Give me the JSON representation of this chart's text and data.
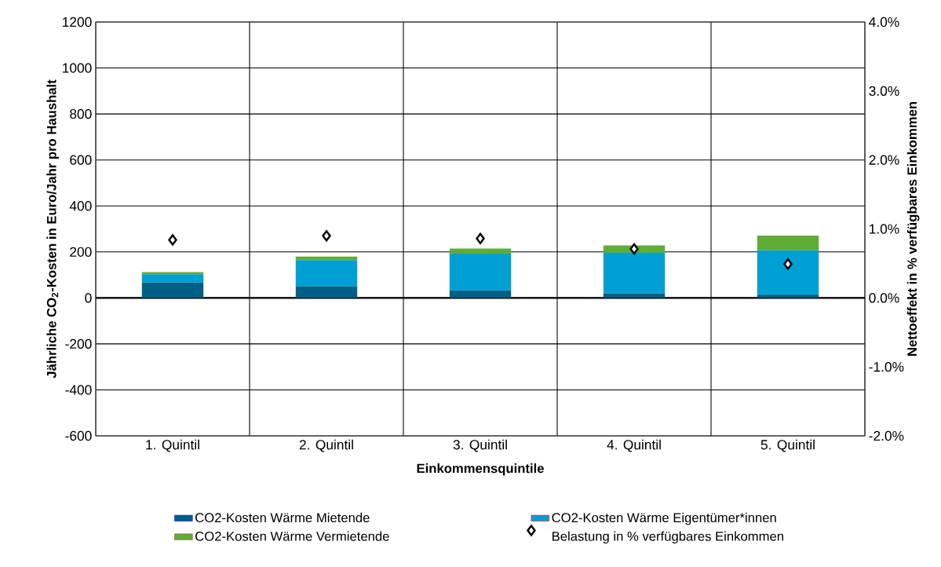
{
  "chart_data": {
    "type": "bar",
    "stacked": true,
    "xlabel": "Einkommensquintile",
    "ylabel": "Jährliche CO$_{2}$-Kosten in Euro/Jahr pro Haushalt",
    "y2label": "Nettoeffekt in % verfügbares Einkommen",
    "categories": [
      "1. Quintil",
      "2. Quintil",
      "3. Quintil",
      "4. Quintil",
      "5. Quintil"
    ],
    "series": [
      {
        "name": "CO2-Kosten Wärme Mietende",
        "color": "#005f86",
        "values": [
          67,
          51,
          33,
          20,
          14
        ]
      },
      {
        "name": "CO2-Kosten Wärme Eigentümer*innen",
        "color": "#009fd4",
        "values": [
          36,
          113,
          159,
          176,
          193
        ]
      },
      {
        "name": "CO2-Kosten Wärme Vermietende",
        "color": "#5fad36",
        "values": [
          9,
          16,
          23,
          32,
          64
        ]
      },
      {
        "name": "Belastung in % verfügbares Einkommen",
        "type": "scatter",
        "axis": "y2",
        "marker": "diamond",
        "color": "#000000",
        "values": [
          0.84,
          0.9,
          0.86,
          0.71,
          0.49
        ]
      }
    ],
    "ylim": [
      -600,
      1200
    ],
    "yticks": [
      -600,
      -400,
      -200,
      0,
      200,
      400,
      600,
      800,
      1000,
      1200
    ],
    "y2lim": [
      -2,
      4
    ],
    "y2ticks": [
      {
        "value": -2,
        "label": "-2.0%"
      },
      {
        "value": -1,
        "label": "-1.0%"
      },
      {
        "value": 0,
        "label": "0.0%"
      },
      {
        "value": 1,
        "label": "1.0%"
      },
      {
        "value": 2,
        "label": "2.0%"
      },
      {
        "value": 3,
        "label": "3.0%"
      },
      {
        "value": 4,
        "label": "4.0%"
      }
    ],
    "grid": true,
    "legend": "bottom"
  }
}
